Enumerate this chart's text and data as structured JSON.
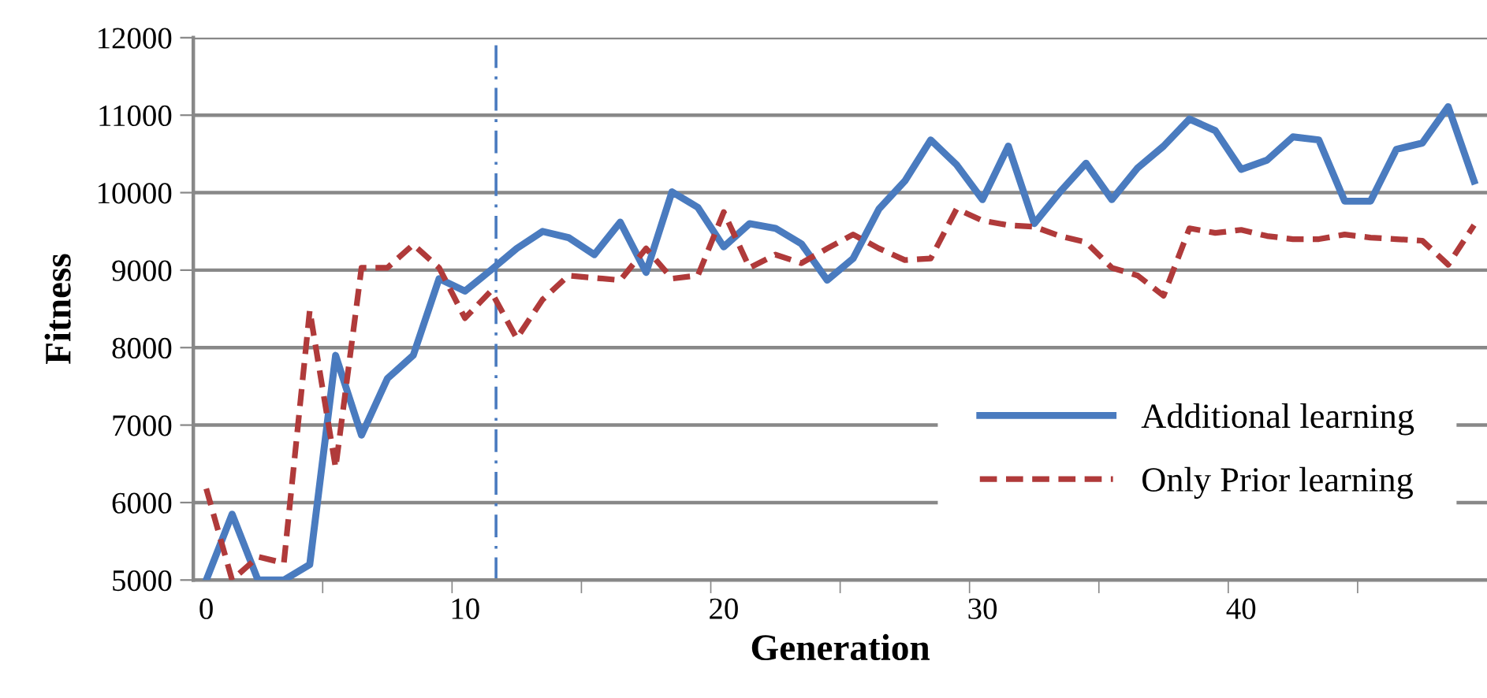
{
  "chart_data": {
    "type": "line",
    "xlabel": "Generation",
    "ylabel": "Fitness",
    "x": [
      0,
      1,
      2,
      3,
      4,
      5,
      6,
      7,
      8,
      9,
      10,
      11,
      12,
      13,
      14,
      15,
      16,
      17,
      18,
      19,
      20,
      21,
      22,
      23,
      24,
      25,
      26,
      27,
      28,
      29,
      30,
      31,
      32,
      33,
      34,
      35,
      36,
      37,
      38,
      39,
      40,
      41,
      42,
      43,
      44,
      45,
      46,
      47,
      48,
      49
    ],
    "series": [
      {
        "name": "Additional learning",
        "color": "#4a7bbf",
        "line_style": "solid",
        "values": [
          5000,
          5850,
          5000,
          5000,
          5200,
          7900,
          6870,
          7600,
          7900,
          8890,
          8730,
          9000,
          9280,
          9500,
          9420,
          9200,
          9620,
          8970,
          10010,
          9810,
          9300,
          9600,
          9540,
          9340,
          8870,
          9150,
          9790,
          10150,
          10680,
          10360,
          9910,
          10600,
          9600,
          10010,
          10380,
          9910,
          10320,
          10600,
          10950,
          10800,
          10300,
          10420,
          10720,
          10680,
          9890,
          9890,
          10560,
          10640,
          11110,
          10150
        ]
      },
      {
        "name": "Only Prior learning",
        "color": "#b03a3a",
        "line_style": "dashed",
        "values": [
          6180,
          5000,
          5300,
          5220,
          8480,
          6450,
          9030,
          9030,
          9330,
          9030,
          8380,
          8730,
          8120,
          8620,
          8930,
          8900,
          8870,
          9280,
          8890,
          8930,
          9750,
          9030,
          9200,
          9090,
          9280,
          9460,
          9280,
          9130,
          9150,
          9790,
          9640,
          9580,
          9560,
          9440,
          9360,
          9030,
          8930,
          8670,
          9540,
          9480,
          9520,
          9440,
          9400,
          9400,
          9460,
          9420,
          9400,
          9380,
          9070,
          9580
        ]
      }
    ],
    "xlim": [
      -0.5,
      49.5
    ],
    "xticks": [
      0,
      {
        "value": 4.5,
        "label": null
      },
      {
        "value": 9.5,
        "label": null
      },
      10,
      {
        "value": 14.5,
        "label": null
      },
      {
        "value": 19.5,
        "label": null
      },
      20,
      {
        "value": 24.5,
        "label": null
      },
      {
        "value": 29.5,
        "label": null
      },
      30,
      {
        "value": 34.5,
        "label": null
      },
      {
        "value": 39.5,
        "label": null
      },
      40,
      {
        "value": 44.5,
        "label": null
      }
    ],
    "ylim": [
      5000,
      12000
    ],
    "yticks": [
      5000,
      6000,
      7000,
      8000,
      9000,
      10000,
      11000,
      12000
    ],
    "grid": "y",
    "legend": "bottom right",
    "marker": "none",
    "ref_lines": [
      {
        "axis": "x",
        "value": 11.2,
        "color": "#4a7bbf",
        "line_style": "dashdot"
      }
    ]
  }
}
